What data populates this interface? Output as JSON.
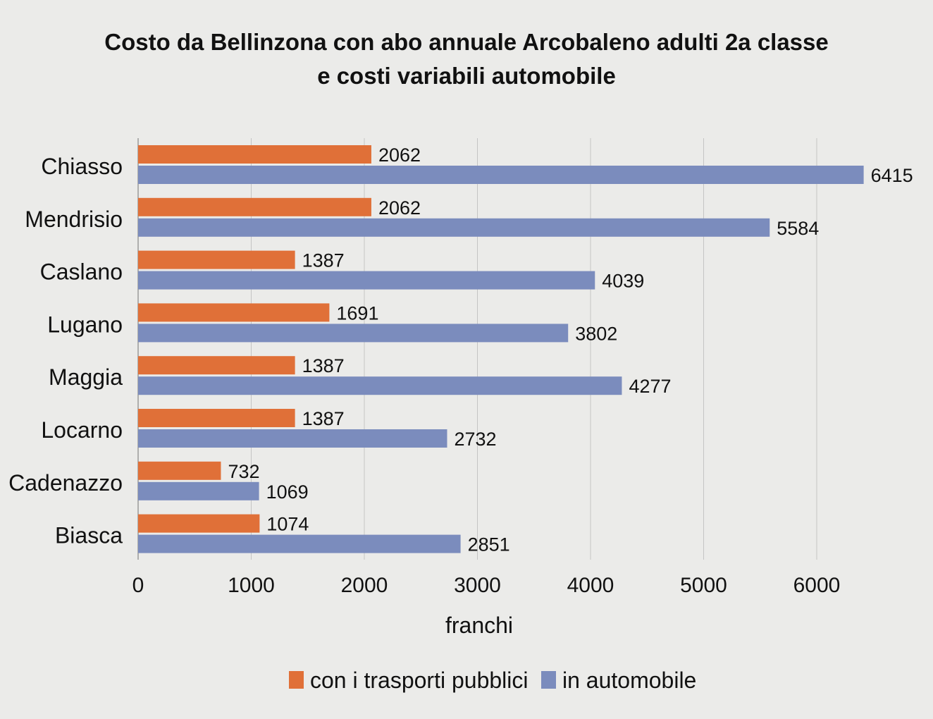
{
  "colors": {
    "series_public": "#e07038",
    "series_car": "#7b8cbd",
    "grid": "#c4c4c4",
    "axis": "#999999",
    "background": "#ebebe9"
  },
  "chart_data": {
    "type": "bar",
    "orientation": "horizontal",
    "title": "Costo da Bellinzona con abo annuale Arcobaleno adulti 2a classe\ne costi variabili automobile",
    "title_lines": [
      "Costo da Bellinzona con abo annuale Arcobaleno adulti 2a classe",
      "e costi variabili automobile"
    ],
    "categories": [
      "Chiasso",
      "Mendrisio",
      "Caslano",
      "Lugano",
      "Maggia",
      "Locarno",
      "Cadenazzo",
      "Biasca"
    ],
    "series": [
      {
        "name": "con i trasporti pubblici",
        "color": "#e07038",
        "values": [
          2062,
          2062,
          1387,
          1691,
          1387,
          1387,
          732,
          1074
        ]
      },
      {
        "name": "in automobile",
        "color": "#7b8cbd",
        "values": [
          6415,
          5584,
          4039,
          3802,
          4277,
          2732,
          1069,
          2851
        ]
      }
    ],
    "xlabel": "franchi",
    "ylabel": "",
    "xlim": [
      0,
      6500
    ],
    "xticks": [
      0,
      1000,
      2000,
      3000,
      4000,
      5000,
      6000
    ],
    "grid": true,
    "data_labels": true,
    "legend_position": "bottom"
  }
}
